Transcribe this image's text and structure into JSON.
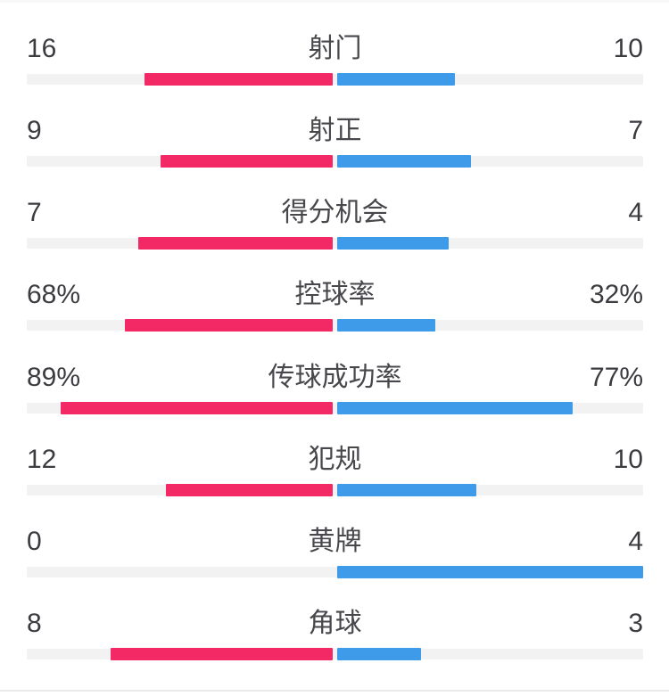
{
  "page": {
    "background": "#ffffff",
    "top_strip_color": "#f8f8f9",
    "bottom_divider_color": "#e9e9e9"
  },
  "colors": {
    "home": "#F32966",
    "away": "#3E9BE9",
    "track": "#F2F2F3",
    "value_text": "#3B3B40",
    "label_text": "#47474C"
  },
  "chart_data": {
    "type": "bar",
    "subtype": "head-to-head mirrored comparison (football match statistics)",
    "legend_position": "none",
    "grid": false,
    "series": [
      {
        "name": "home",
        "side": "left",
        "color": "#F32966"
      },
      {
        "name": "away",
        "side": "right",
        "color": "#3E9BE9"
      }
    ],
    "rows": [
      {
        "label": "射门",
        "left": "16",
        "right": "10",
        "left_value": 16,
        "right_value": 10,
        "percent": false
      },
      {
        "label": "射正",
        "left": "9",
        "right": "7",
        "left_value": 9,
        "right_value": 7,
        "percent": false
      },
      {
        "label": "得分机会",
        "left": "7",
        "right": "4",
        "left_value": 7,
        "right_value": 4,
        "percent": false
      },
      {
        "label": "控球率",
        "left": "68%",
        "right": "32%",
        "left_value": 68,
        "right_value": 32,
        "percent": true
      },
      {
        "label": "传球成功率",
        "left": "89%",
        "right": "77%",
        "left_value": 89,
        "right_value": 77,
        "percent": true
      },
      {
        "label": "犯规",
        "left": "12",
        "right": "10",
        "left_value": 12,
        "right_value": 10,
        "percent": false
      },
      {
        "label": "黄牌",
        "left": "0",
        "right": "4",
        "left_value": 0,
        "right_value": 4,
        "percent": false
      },
      {
        "label": "角球",
        "left": "8",
        "right": "3",
        "left_value": 8,
        "right_value": 3,
        "percent": false
      }
    ]
  }
}
